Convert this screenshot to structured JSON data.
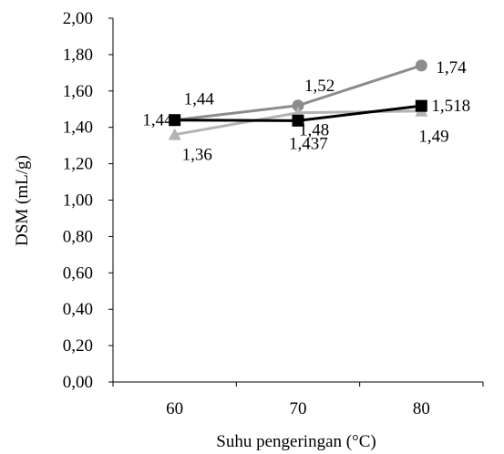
{
  "chart_data": {
    "type": "line",
    "title": "",
    "xlabel": "Suhu pengeringan (°C)",
    "ylabel": "DSM (mL/g)",
    "categories": [
      "60",
      "70",
      "80"
    ],
    "ylim": [
      0,
      2
    ],
    "yticks": [
      "0,00",
      "0,20",
      "0,40",
      "0,60",
      "0,80",
      "1,00",
      "1,20",
      "1,40",
      "1,60",
      "1,80",
      "2,00"
    ],
    "grid": false,
    "legend": "none",
    "series": [
      {
        "values": [
          1.44,
          1.52,
          1.74
        ],
        "labels": [
          "1,44",
          "1,52",
          "1,74"
        ],
        "color": "#8c8c8c",
        "marker": "circle"
      },
      {
        "values": [
          1.36,
          1.48,
          1.49
        ],
        "labels": [
          "1,36",
          "1,48",
          "1,49"
        ],
        "color": "#b3b3b3",
        "marker": "triangle"
      },
      {
        "values": [
          1.44,
          1.437,
          1.518
        ],
        "labels": [
          "1,44",
          "1,437",
          "1,518"
        ],
        "color": "#000000",
        "marker": "square"
      }
    ]
  }
}
